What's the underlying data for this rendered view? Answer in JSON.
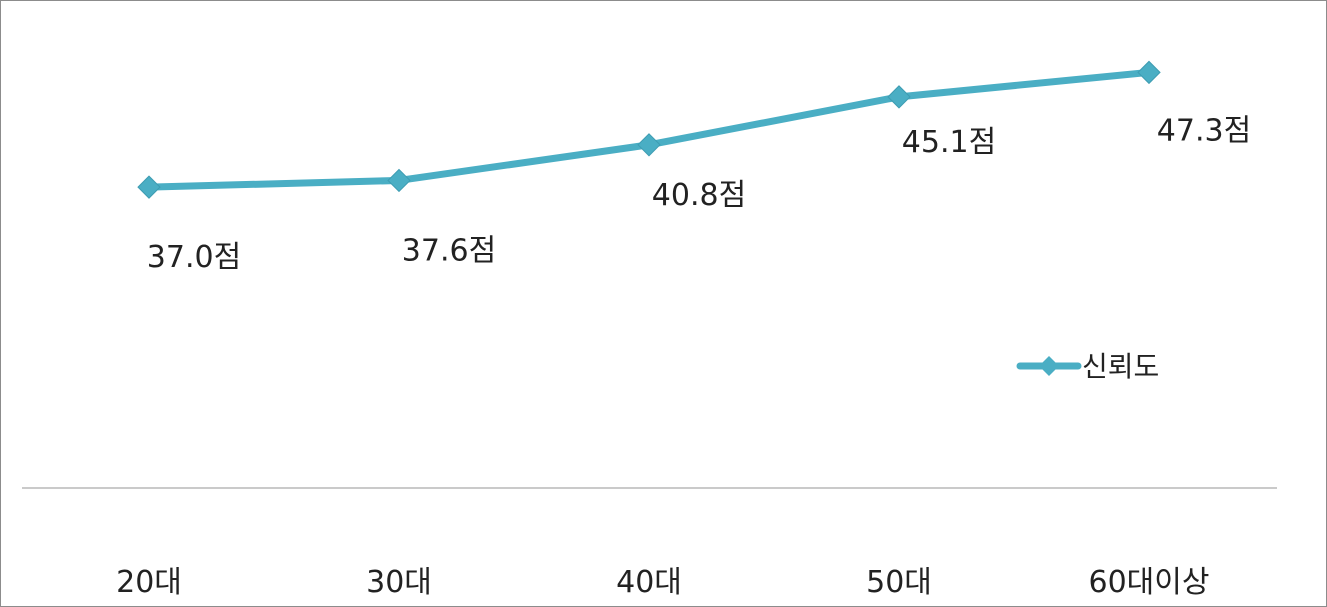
{
  "chart_data": {
    "type": "line",
    "title": "",
    "xlabel": "",
    "ylabel": "",
    "categories": [
      "20대",
      "30대",
      "40대",
      "50대",
      "60대이상"
    ],
    "series": [
      {
        "name": "신뢰도",
        "values": [
          37.0,
          37.6,
          40.8,
          45.1,
          47.3
        ],
        "data_labels": [
          "37.0점",
          "37.6점",
          "40.8점",
          "45.1점",
          "47.3점"
        ],
        "color": "#4aaec4",
        "marker": "diamond"
      }
    ],
    "ylim": [
      10,
      52
    ],
    "grid": false,
    "legend": {
      "position": "right",
      "entries": [
        "신뢰도"
      ]
    }
  }
}
